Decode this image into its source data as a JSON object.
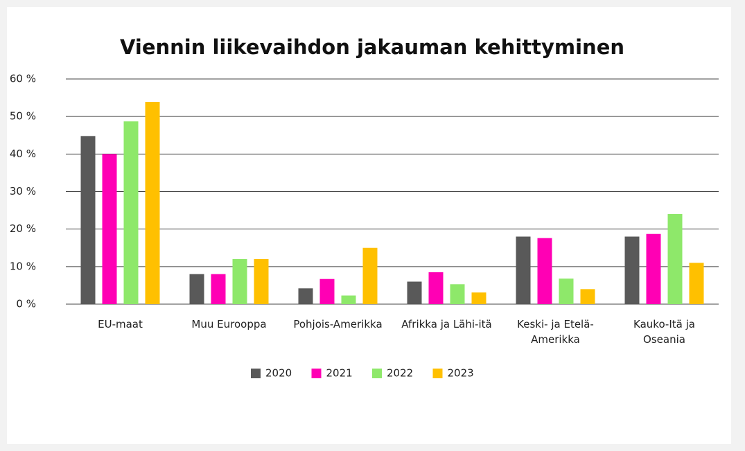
{
  "chart_data": {
    "type": "bar",
    "title": "Viennin liikevaihdon jakauman kehittyminen",
    "categories": [
      [
        "EU-maat"
      ],
      [
        "Muu Eurooppa"
      ],
      [
        "Pohjois-Amerikka"
      ],
      [
        "Afrikka ja Lähi-itä"
      ],
      [
        "Keski- ja Etelä-",
        "Amerikka"
      ],
      [
        "Kauko-Itä ja",
        "Oseania"
      ]
    ],
    "series": [
      {
        "name": "2020",
        "color": "#595959",
        "values": [
          44.8,
          8,
          4.2,
          6,
          18,
          18
        ]
      },
      {
        "name": "2021",
        "color": "#ff00b4",
        "values": [
          40,
          8,
          6.7,
          8.5,
          17.6,
          18.7
        ]
      },
      {
        "name": "2022",
        "color": "#8ee86a",
        "values": [
          48.7,
          12,
          2.3,
          5.3,
          6.8,
          24
        ]
      },
      {
        "name": "2023",
        "color": "#ffc000",
        "values": [
          53.9,
          12,
          15,
          3.1,
          4,
          11
        ]
      }
    ],
    "ylim": [
      0,
      60
    ],
    "yticks": [
      {
        "value": 0,
        "label": "0 %"
      },
      {
        "value": 10,
        "label": "10 %"
      },
      {
        "value": 20,
        "label": "20 %"
      },
      {
        "value": 30,
        "label": "30 %"
      },
      {
        "value": 40,
        "label": "40 %"
      },
      {
        "value": 50,
        "label": "50 %"
      },
      {
        "value": 60,
        "label": "60 %"
      }
    ],
    "grid": true,
    "legend": "bottom"
  }
}
